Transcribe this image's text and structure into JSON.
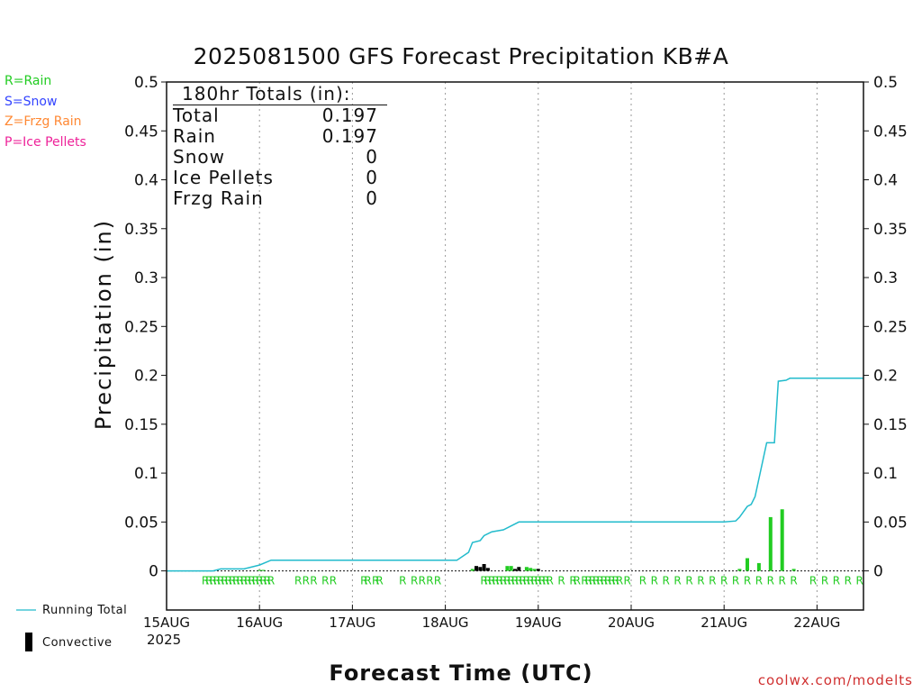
{
  "title": "2025081500 GFS Forecast Precipitation KB#A",
  "ylabel": "Precipitation (in)",
  "xlabel": "Forecast Time (UTC)",
  "credit": "coolwx.com/modelts",
  "type_legend": [
    {
      "label": "R=Rain",
      "color": "#22cc22"
    },
    {
      "label": "S=Snow",
      "color": "#3344ff"
    },
    {
      "label": "Z=Frzg Rain",
      "color": "#ff8833"
    },
    {
      "label": "P=Ice Pellets",
      "color": "#ee2299"
    }
  ],
  "bottom_legend": {
    "running_total": "Running Total",
    "convective": "Convective",
    "running_total_color": "#22bbcc",
    "convective_color": "#000000"
  },
  "totals": {
    "header": "180hr Totals (in):",
    "rows": [
      {
        "label": "Total",
        "value": "0.197"
      },
      {
        "label": "Rain",
        "value": "0.197"
      },
      {
        "label": "Snow",
        "value": "0"
      },
      {
        "label": "Ice Pellets",
        "value": "0"
      },
      {
        "label": "Frzg Rain",
        "value": "0"
      }
    ]
  },
  "chart_data": {
    "type": "bar",
    "title": "2025081500 GFS Forecast Precipitation KB#A",
    "xlabel": "Forecast Time (UTC)",
    "ylabel": "Precipitation (in)",
    "ylim": [
      -0.04,
      0.5
    ],
    "xlim_hours": [
      0,
      180
    ],
    "y_ticks": [
      "0",
      "0.05",
      "0.1",
      "0.15",
      "0.2",
      "0.25",
      "0.3",
      "0.35",
      "0.4",
      "0.45",
      "0.5"
    ],
    "x_ticks": [
      {
        "hour": 0,
        "label": "15AUG"
      },
      {
        "hour": 24,
        "label": "16AUG"
      },
      {
        "hour": 48,
        "label": "17AUG"
      },
      {
        "hour": 72,
        "label": "18AUG"
      },
      {
        "hour": 96,
        "label": "19AUG"
      },
      {
        "hour": 120,
        "label": "20AUG"
      },
      {
        "hour": 144,
        "label": "21AUG"
      },
      {
        "hour": 168,
        "label": "22AUG"
      }
    ],
    "year_label": "2025",
    "grid": "vertical dotted at day boundaries",
    "series": [
      {
        "name": "Running Total",
        "kind": "line",
        "color": "#22bbcc",
        "points": [
          [
            0,
            0
          ],
          [
            12,
            0
          ],
          [
            14,
            0.002
          ],
          [
            20,
            0.002
          ],
          [
            24,
            0.006
          ],
          [
            27,
            0.011
          ],
          [
            75,
            0.011
          ],
          [
            78,
            0.019
          ],
          [
            79,
            0.029
          ],
          [
            81,
            0.031
          ],
          [
            82,
            0.036
          ],
          [
            84,
            0.04
          ],
          [
            87,
            0.042
          ],
          [
            91,
            0.05
          ],
          [
            144,
            0.05
          ],
          [
            147,
            0.051
          ],
          [
            148,
            0.055
          ],
          [
            150,
            0.066
          ],
          [
            151,
            0.068
          ],
          [
            152,
            0.076
          ],
          [
            155,
            0.131
          ],
          [
            157,
            0.131
          ],
          [
            158,
            0.194
          ],
          [
            160,
            0.195
          ],
          [
            161,
            0.197
          ],
          [
            180,
            0.197
          ]
        ]
      },
      {
        "name": "Rain",
        "kind": "bar",
        "color": "#22cc22",
        "points": [
          [
            24,
            0.001
          ],
          [
            25,
            0.001
          ],
          [
            79,
            0.002
          ],
          [
            82,
            0.002
          ],
          [
            88,
            0.005
          ],
          [
            89,
            0.005
          ],
          [
            93,
            0.004
          ],
          [
            94,
            0.003
          ],
          [
            95,
            0.002
          ],
          [
            148,
            0.002
          ],
          [
            150,
            0.013
          ],
          [
            153,
            0.008
          ],
          [
            156,
            0.055
          ],
          [
            159,
            0.063
          ],
          [
            162,
            0.002
          ]
        ]
      },
      {
        "name": "Convective",
        "kind": "bar",
        "color": "#000000",
        "points": [
          [
            80,
            0.005
          ],
          [
            81,
            0.004
          ],
          [
            82,
            0.007
          ],
          [
            83,
            0.003
          ],
          [
            90,
            0.002
          ],
          [
            91,
            0.004
          ],
          [
            96,
            0.002
          ]
        ]
      }
    ],
    "type_markers_hours": [
      10,
      11,
      12,
      13,
      14,
      15,
      16,
      17,
      18,
      19,
      20,
      21,
      22,
      23,
      24,
      25,
      26,
      27,
      34,
      36,
      38,
      41,
      43,
      51,
      52,
      54,
      55,
      61,
      64,
      66,
      68,
      70,
      82,
      83,
      84,
      85,
      86,
      87,
      88,
      89,
      90,
      91,
      92,
      93,
      94,
      95,
      96,
      97,
      98,
      99,
      102,
      105,
      106,
      108,
      109,
      110,
      111,
      112,
      113,
      114,
      115,
      116,
      117,
      119,
      123,
      126,
      129,
      132,
      135,
      138,
      141,
      144,
      147,
      150,
      153,
      156,
      159,
      162,
      167,
      170,
      173,
      176,
      179
    ],
    "type_marker_label": "R"
  }
}
